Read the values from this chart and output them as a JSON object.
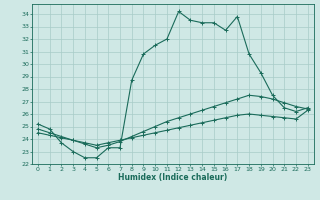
{
  "xlabel": "Humidex (Indice chaleur)",
  "ylabel": "",
  "xlim": [
    -0.5,
    23.5
  ],
  "ylim": [
    22.0,
    34.8
  ],
  "xticks": [
    0,
    1,
    2,
    3,
    4,
    5,
    6,
    7,
    8,
    9,
    10,
    11,
    12,
    13,
    14,
    15,
    16,
    17,
    18,
    19,
    20,
    21,
    22,
    23
  ],
  "yticks": [
    22,
    23,
    24,
    25,
    26,
    27,
    28,
    29,
    30,
    31,
    32,
    33,
    34
  ],
  "background_color": "#cfe8e5",
  "grid_color": "#a8ccc8",
  "line_color": "#1a6b5a",
  "line1_x": [
    0,
    1,
    2,
    3,
    4,
    5,
    6,
    7,
    8,
    9,
    10,
    11,
    12,
    13,
    14,
    15,
    16,
    17,
    18,
    19,
    20,
    21,
    22,
    23
  ],
  "line1_y": [
    25.2,
    24.8,
    23.7,
    23.0,
    22.5,
    22.5,
    23.3,
    23.3,
    28.7,
    30.8,
    31.5,
    32.0,
    34.2,
    33.5,
    33.3,
    33.3,
    32.7,
    33.8,
    30.8,
    29.3,
    27.5,
    26.5,
    26.2,
    26.5
  ],
  "line2_x": [
    0,
    1,
    2,
    3,
    4,
    5,
    6,
    7,
    8,
    9,
    10,
    11,
    12,
    13,
    14,
    15,
    16,
    17,
    18,
    19,
    20,
    21,
    22,
    23
  ],
  "line2_y": [
    24.8,
    24.5,
    24.2,
    23.9,
    23.6,
    23.3,
    23.5,
    23.8,
    24.2,
    24.6,
    25.0,
    25.4,
    25.7,
    26.0,
    26.3,
    26.6,
    26.9,
    27.2,
    27.5,
    27.4,
    27.2,
    26.9,
    26.6,
    26.4
  ],
  "line3_x": [
    0,
    1,
    2,
    3,
    4,
    5,
    6,
    7,
    8,
    9,
    10,
    11,
    12,
    13,
    14,
    15,
    16,
    17,
    18,
    19,
    20,
    21,
    22,
    23
  ],
  "line3_y": [
    24.5,
    24.3,
    24.1,
    23.9,
    23.7,
    23.5,
    23.7,
    23.9,
    24.1,
    24.3,
    24.5,
    24.7,
    24.9,
    25.1,
    25.3,
    25.5,
    25.7,
    25.9,
    26.0,
    25.9,
    25.8,
    25.7,
    25.6,
    26.3
  ]
}
